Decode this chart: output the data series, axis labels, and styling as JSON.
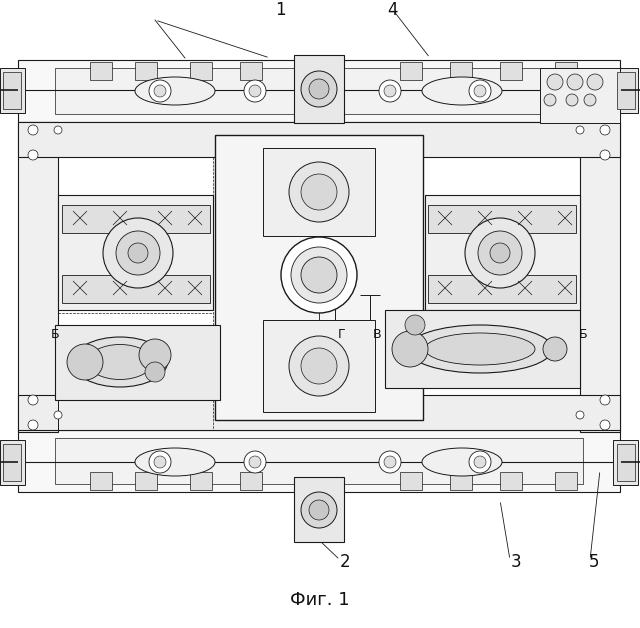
{
  "caption": "Фиг. 1",
  "caption_fontsize": 13,
  "bg_color": "#ffffff",
  "fig_width": 6.4,
  "fig_height": 6.28,
  "dpi": 100,
  "label_1": "1",
  "label_2": "2",
  "label_3": "3",
  "label_4": "4",
  "label_5": "5",
  "label_B1": "Б",
  "label_B2": "Б",
  "label_G": "Г",
  "label_V": "В",
  "line_color": "#1a1a1a",
  "text_color": "#111111"
}
